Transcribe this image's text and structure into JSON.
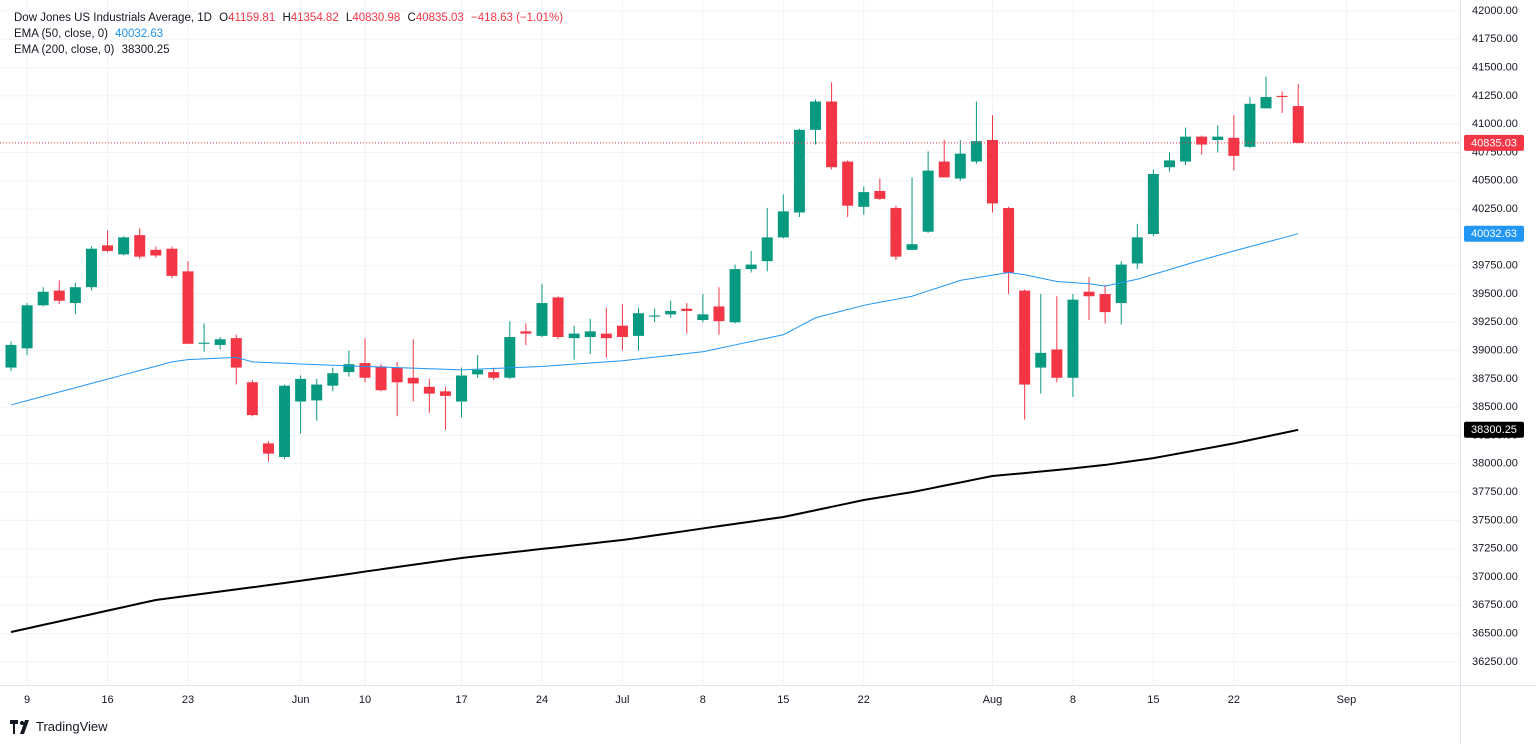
{
  "chart_data": {
    "type": "candlestick",
    "title": "Dow Jones US Industrials Average, 1D",
    "ohlc_prefixes": [
      "O",
      "H",
      "L",
      "C"
    ],
    "change": "−418.63 (−1.01%)",
    "branding": "TradingView",
    "up_color": "#089981",
    "down_color": "#f23645",
    "grid": true,
    "categories": [
      null,
      "9",
      null,
      null,
      null,
      null,
      "16",
      null,
      null,
      null,
      null,
      "23",
      null,
      null,
      null,
      null,
      null,
      null,
      "Jun",
      null,
      null,
      null,
      "10",
      null,
      null,
      null,
      null,
      null,
      "17",
      null,
      null,
      null,
      null,
      "24",
      null,
      null,
      null,
      null,
      "Jul",
      null,
      null,
      null,
      null,
      "8",
      null,
      null,
      null,
      null,
      "15",
      null,
      null,
      null,
      null,
      "22",
      null,
      null,
      null,
      null,
      null,
      null,
      null,
      "Aug",
      null,
      null,
      null,
      null,
      "8",
      null,
      null,
      null,
      null,
      "15",
      null,
      null,
      null,
      null,
      "22",
      null,
      null,
      null,
      null,
      null,
      null,
      "Sep",
      null,
      null,
      null,
      null,
      null,
      null
    ],
    "ohlc": {
      "open": [
        38850,
        39020,
        39400,
        39530,
        39420,
        39560,
        39930,
        39850,
        40020,
        39890,
        39900,
        39700,
        39060,
        39050,
        39110,
        38720,
        38180,
        38060,
        38550,
        38560,
        38690,
        38810,
        38890,
        38860,
        38850,
        38760,
        38680,
        38640,
        38550,
        38790,
        38810,
        38760,
        39170,
        39130,
        39470,
        39110,
        39120,
        39150,
        39220,
        39130,
        39300,
        39320,
        39370,
        39270,
        39390,
        39250,
        39720,
        39790,
        40000,
        40220,
        40950,
        41200,
        40670,
        40270,
        40410,
        40260,
        39890,
        40050,
        40670,
        40520,
        40670,
        40860,
        40260,
        39530,
        38850,
        39010,
        38760,
        39520,
        39500,
        39420,
        39770,
        40030,
        40620,
        40670,
        40890,
        40860,
        40880,
        40800,
        41140,
        41250,
        41159.81,
        null,
        null,
        null,
        null,
        null,
        null,
        null,
        null,
        null
      ],
      "high": [
        39080,
        39420,
        39560,
        39620,
        39600,
        39920,
        40060,
        40010,
        40080,
        39920,
        39920,
        39790,
        39240,
        39120,
        39140,
        38740,
        38200,
        38700,
        38780,
        38750,
        38850,
        39000,
        39110,
        38880,
        38900,
        39100,
        38750,
        38680,
        38850,
        38960,
        38850,
        39260,
        39240,
        39590,
        39480,
        39220,
        39280,
        39380,
        39410,
        39380,
        39370,
        39440,
        39420,
        39500,
        39560,
        39760,
        39880,
        40260,
        40380,
        40960,
        41220,
        41370,
        40680,
        40450,
        40520,
        40280,
        40530,
        40760,
        40860,
        40860,
        41200,
        41080,
        40270,
        39540,
        39500,
        39480,
        39500,
        39650,
        39580,
        39790,
        40120,
        40600,
        40750,
        40970,
        40900,
        40990,
        41080,
        41240,
        41420,
        41290,
        41354.82,
        null,
        null,
        null,
        null,
        null,
        null,
        null,
        null,
        null
      ],
      "low": [
        38820,
        38960,
        39390,
        39410,
        39320,
        39530,
        39870,
        39840,
        39810,
        39820,
        39640,
        39060,
        38990,
        39010,
        38700,
        38420,
        38020,
        38040,
        38270,
        38380,
        38640,
        38770,
        38720,
        38640,
        38420,
        38550,
        38450,
        38300,
        38410,
        38760,
        38740,
        38750,
        39050,
        39120,
        39100,
        38920,
        38970,
        38940,
        39000,
        39000,
        39250,
        39290,
        39150,
        39250,
        39140,
        39240,
        39690,
        39700,
        39990,
        40180,
        40820,
        40600,
        40180,
        40200,
        40330,
        39800,
        39890,
        40040,
        40530,
        40500,
        40650,
        40220,
        39500,
        38390,
        38620,
        38720,
        38590,
        39270,
        39240,
        39230,
        39720,
        40010,
        40580,
        40640,
        40730,
        40750,
        40590,
        40790,
        41140,
        41100,
        40830.98,
        null,
        null,
        null,
        null,
        null,
        null,
        null,
        null,
        null
      ],
      "close": [
        39050,
        39400,
        39520,
        39440,
        39560,
        39900,
        39880,
        40000,
        39830,
        39840,
        39660,
        39060,
        39070,
        39100,
        38850,
        38430,
        38090,
        38690,
        38750,
        38700,
        38800,
        38880,
        38760,
        38650,
        38720,
        38710,
        38620,
        38600,
        38780,
        38830,
        38760,
        39120,
        39150,
        39420,
        39120,
        39150,
        39170,
        39110,
        39120,
        39330,
        39310,
        39350,
        39350,
        39320,
        39260,
        39720,
        39760,
        40000,
        40230,
        40950,
        41200,
        40620,
        40280,
        40400,
        40340,
        39830,
        39940,
        40590,
        40530,
        40740,
        40850,
        40300,
        39690,
        38700,
        38980,
        38760,
        39450,
        39480,
        39340,
        39760,
        40000,
        40560,
        40680,
        40890,
        40820,
        40890,
        40720,
        41180,
        41240,
        41240,
        40835.03,
        null,
        null,
        null,
        null,
        null,
        null,
        null,
        null,
        null
      ]
    },
    "series": [
      {
        "name": "EMA (50, close, 0)",
        "color": "#2196f3",
        "width": 1,
        "values": [
          38520,
          38558,
          38596,
          38634,
          38672,
          38710,
          38748,
          38786,
          38824,
          38862,
          38900,
          38920,
          38927,
          38933,
          38940,
          38900,
          38894,
          38888,
          38882,
          38876,
          38870,
          38865,
          38860,
          38855,
          38850,
          38845,
          38840,
          38835,
          38830,
          38836,
          38842,
          38848,
          38854,
          38860,
          38870,
          38880,
          38890,
          38900,
          38910,
          38926,
          38942,
          38958,
          38974,
          38990,
          39020,
          39050,
          39080,
          39110,
          39140,
          39215,
          39290,
          39327,
          39363,
          39400,
          39427,
          39453,
          39480,
          39527,
          39573,
          39620,
          39643,
          39667,
          39690,
          39670,
          39640,
          39610,
          39600,
          39590,
          39570,
          39600,
          39630,
          39673,
          39715,
          39758,
          39800,
          39840,
          39880,
          39918,
          39956,
          39994,
          40032.63,
          null,
          null,
          null,
          null,
          null,
          null,
          null,
          null,
          null
        ]
      },
      {
        "name": "EMA (200, close, 0)",
        "color": "#000000",
        "width": 2,
        "values": [
          36514,
          36545,
          36577,
          36608,
          36640,
          36671,
          36703,
          36734,
          36766,
          36797,
          36816,
          36834,
          36853,
          36872,
          36891,
          36909,
          36928,
          36947,
          36967,
          36987,
          37007,
          37027,
          37048,
          37068,
          37088,
          37108,
          37128,
          37148,
          37168,
          37184,
          37200,
          37216,
          37232,
          37248,
          37263,
          37279,
          37295,
          37311,
          37327,
          37347,
          37368,
          37388,
          37408,
          37429,
          37449,
          37469,
          37489,
          37510,
          37530,
          37560,
          37590,
          37620,
          37650,
          37680,
          37703,
          37727,
          37750,
          37778,
          37807,
          37835,
          37864,
          37892,
          37905,
          37918,
          37932,
          37945,
          37960,
          37975,
          37990,
          38010,
          38030,
          38050,
          38076,
          38102,
          38128,
          38154,
          38180,
          38210,
          38240,
          38270,
          38300.25,
          null,
          null,
          null,
          null,
          null,
          null,
          null,
          null,
          null
        ]
      }
    ],
    "ylim": [
      36046,
      42097
    ],
    "yticks": [
      {
        "value": 36250,
        "label": "36250.00"
      },
      {
        "value": 36500,
        "label": "36500.00"
      },
      {
        "value": 36750,
        "label": "36750.00"
      },
      {
        "value": 37000,
        "label": "37000.00"
      },
      {
        "value": 37250,
        "label": "37250.00"
      },
      {
        "value": 37500,
        "label": "37500.00"
      },
      {
        "value": 37750,
        "label": "37750.00"
      },
      {
        "value": 38000,
        "label": "38000.00"
      },
      {
        "value": 38250,
        "label": "38250.00"
      },
      {
        "value": 38500,
        "label": "38500.00"
      },
      {
        "value": 38750,
        "label": "38750.00"
      },
      {
        "value": 39000,
        "label": "39000.00"
      },
      {
        "value": 39250,
        "label": "39250.00"
      },
      {
        "value": 39500,
        "label": "39500.00"
      },
      {
        "value": 39750,
        "label": "39750.00"
      },
      {
        "value": 40000,
        "label": "40000.00"
      },
      {
        "value": 40250,
        "label": "40250.00"
      },
      {
        "value": 40500,
        "label": "40500.00"
      },
      {
        "value": 40750,
        "label": "40750.00"
      },
      {
        "value": 41000,
        "label": "41000.00"
      },
      {
        "value": 41250,
        "label": "41250.00"
      },
      {
        "value": 41500,
        "label": "41500.00"
      },
      {
        "value": 41750,
        "label": "41750.00"
      },
      {
        "value": 42000,
        "label": "42000.00"
      }
    ]
  }
}
